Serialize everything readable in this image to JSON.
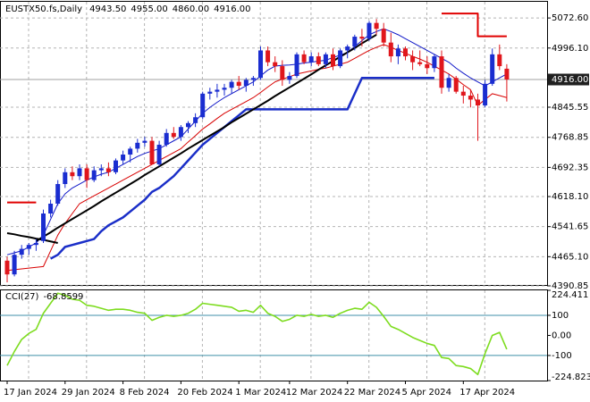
{
  "chart_data": {
    "type": "candlestick",
    "title": "EUSTX50.fs,Daily",
    "header_values": [
      {
        "value": 4943.5,
        "label": "4943.50"
      },
      {
        "value": 4955,
        "label": "4955.00"
      },
      {
        "value": 4860,
        "label": "4860.00"
      },
      {
        "value": 4916,
        "label": "4916.00"
      }
    ],
    "categories": [
      "17 Jan 2024",
      null,
      null,
      null,
      null,
      null,
      null,
      null,
      "29 Jan 2024",
      null,
      null,
      null,
      null,
      null,
      null,
      null,
      "8 Feb 2024",
      null,
      null,
      null,
      null,
      null,
      null,
      null,
      "20 Feb 2024",
      null,
      null,
      null,
      null,
      null,
      null,
      null,
      "1 Mar 2024",
      null,
      null,
      null,
      null,
      null,
      null,
      "12 Mar 2024",
      null,
      null,
      null,
      null,
      null,
      null,
      null,
      "22 Mar 2024",
      null,
      null,
      null,
      null,
      null,
      null,
      null,
      "5 Apr 2024",
      null,
      null,
      null,
      null,
      null,
      null,
      null,
      "17 Apr 2024",
      null,
      null,
      null,
      null,
      null,
      null
    ],
    "open": [
      4455,
      4420,
      4470,
      4485,
      4495,
      4505,
      4575,
      4600,
      4650,
      4680,
      4670,
      4690,
      4660,
      4685,
      4690,
      4680,
      4710,
      4725,
      4740,
      4755,
      4760,
      4700,
      4750,
      4780,
      4770,
      4795,
      4805,
      4820,
      4880,
      4885,
      4890,
      4895,
      4910,
      4900,
      4915,
      4920,
      4990,
      4960,
      4950,
      4915,
      4925,
      4980,
      4960,
      4975,
      4955,
      4980,
      4950,
      4990,
      5000,
      5025,
      5020,
      5060,
      5045,
      5010,
      4975,
      4995,
      4975,
      4960,
      4955,
      4945,
      4975,
      4895,
      4920,
      4885,
      4875,
      4865,
      4850,
      4905,
      4980,
      4943.5
    ],
    "high": [
      4465,
      4480,
      4495,
      4500,
      4510,
      4585,
      4610,
      4660,
      4690,
      4695,
      4700,
      4700,
      4695,
      4700,
      4705,
      4715,
      4735,
      4745,
      4765,
      4770,
      4770,
      4760,
      4790,
      4795,
      4800,
      4810,
      4830,
      4885,
      4895,
      4905,
      4905,
      4915,
      4925,
      4920,
      4925,
      5000,
      5000,
      4975,
      4965,
      4935,
      4985,
      4990,
      4985,
      4985,
      4985,
      4995,
      4995,
      5005,
      5030,
      5045,
      5065,
      5070,
      5060,
      5035,
      5005,
      5000,
      4990,
      4990,
      4975,
      4980,
      4990,
      4930,
      4925,
      4900,
      4890,
      4880,
      4915,
      4995,
      5005,
      4955
    ],
    "low": [
      4400,
      4415,
      4460,
      4470,
      4480,
      4500,
      4565,
      4595,
      4640,
      4660,
      4660,
      4640,
      4655,
      4670,
      4670,
      4675,
      4700,
      4705,
      4730,
      4745,
      4700,
      4695,
      4745,
      4765,
      4760,
      4780,
      4795,
      4815,
      4865,
      4870,
      4875,
      4880,
      4890,
      4885,
      4900,
      4915,
      4950,
      4935,
      4900,
      4905,
      4920,
      4955,
      4950,
      4950,
      4945,
      4940,
      4945,
      4970,
      4990,
      5000,
      5015,
      5030,
      5000,
      4960,
      4955,
      4965,
      4940,
      4950,
      4930,
      4935,
      4880,
      4885,
      4880,
      4855,
      4845,
      4760,
      4845,
      4900,
      4940,
      4860
    ],
    "close": [
      4420,
      4470,
      4485,
      4495,
      4500,
      4575,
      4600,
      4650,
      4680,
      4670,
      4690,
      4660,
      4685,
      4690,
      4680,
      4710,
      4725,
      4740,
      4755,
      4760,
      4700,
      4750,
      4780,
      4770,
      4795,
      4805,
      4820,
      4880,
      4885,
      4890,
      4895,
      4910,
      4900,
      4915,
      4920,
      4990,
      4960,
      4950,
      4915,
      4925,
      4980,
      4960,
      4975,
      4955,
      4980,
      4950,
      4990,
      5000,
      5025,
      5020,
      5060,
      5045,
      5010,
      4975,
      4995,
      4975,
      4960,
      4955,
      4945,
      4975,
      4895,
      4920,
      4885,
      4875,
      4865,
      4850,
      4905,
      4980,
      4950,
      4916
    ],
    "up_color": "#1a2dd0",
    "down_color": "#e0161c",
    "lines": [
      {
        "color": "#1018c8",
        "width": 1,
        "values": [
          4470,
          4475,
          4480,
          4490,
          4500,
          4520,
          4560,
          4600,
          4625,
          4640,
          4650,
          4660,
          4668,
          4675,
          4680,
          4690,
          4700,
          4710,
          4720,
          4728,
          4734,
          4740,
          4750,
          4760,
          4770,
          4790,
          4810,
          4830,
          4845,
          4858,
          4870,
          4880,
          4890,
          4900,
          4910,
          4925,
          4940,
          4950,
          4952,
          4953,
          4955,
          4958,
          4960,
          4963,
          4965,
          4972,
          4978,
          4985,
          5000,
          5015,
          5030,
          5038,
          5045,
          5038,
          5030,
          5020,
          5010,
          5000,
          4990,
          4980,
          4970,
          4960,
          4945,
          4932,
          4920,
          4910,
          4900,
          4910,
          4920,
          4930
        ]
      },
      {
        "color": "#d80000",
        "width": 1,
        "values": [
          4430,
          4432,
          4434,
          4436,
          4438,
          4440,
          4480,
          4520,
          4550,
          4575,
          4600,
          4610,
          4620,
          4630,
          4640,
          4650,
          4660,
          4670,
          4680,
          4690,
          4700,
          4710,
          4720,
          4730,
          4740,
          4757,
          4773,
          4790,
          4803,
          4817,
          4830,
          4840,
          4850,
          4860,
          4870,
          4883,
          4897,
          4910,
          4917,
          4923,
          4930,
          4934,
          4938,
          4942,
          4945,
          4950,
          4955,
          4960,
          4970,
          4980,
          4990,
          4998,
          5005,
          4998,
          4990,
          4983,
          4975,
          4968,
          4960,
          4950,
          4940,
          4930,
          4917,
          4903,
          4890,
          4850,
          4865,
          4880,
          4875,
          4870
        ]
      },
      {
        "color": "#1a2ec8",
        "width": 2.5,
        "values": [
          null,
          null,
          null,
          null,
          null,
          null,
          4460,
          4470,
          4490,
          4495,
          4500,
          4505,
          4510,
          4530,
          4545,
          4555,
          4565,
          4580,
          4595,
          4610,
          4630,
          4640,
          4655,
          4670,
          4690,
          4710,
          4730,
          4750,
          4765,
          4780,
          4795,
          4810,
          4825,
          4840,
          4840,
          4840,
          4840,
          4840,
          4840,
          4840,
          4840,
          4840,
          4840,
          4840,
          4840,
          4840,
          4840,
          4840,
          4880,
          4920,
          4920,
          4920,
          4920,
          4920,
          4920,
          4920,
          4920,
          4920,
          4920,
          4920,
          null,
          null,
          null,
          null,
          null,
          null,
          null,
          null,
          null,
          null
        ]
      },
      {
        "color": "#e00000",
        "width": 2,
        "style": "step",
        "values": [
          4603,
          4603,
          4603,
          4603,
          4603,
          null,
          null,
          null,
          null,
          null,
          null,
          null,
          null,
          null,
          null,
          null,
          null,
          null,
          null,
          null,
          null,
          null,
          null,
          null,
          null,
          null,
          null,
          null,
          null,
          null,
          null,
          null,
          null,
          null,
          null,
          null,
          null,
          null,
          null,
          null,
          null,
          null,
          null,
          null,
          null,
          null,
          null,
          null,
          null,
          null,
          null,
          null,
          null,
          null,
          null,
          null,
          null,
          null,
          null,
          null,
          5084,
          5084,
          5084,
          5084,
          5084,
          5026,
          5026,
          5026,
          5026,
          5026
        ]
      },
      {
        "color": "#000000",
        "width": 2,
        "values": [
          4525,
          4522,
          4518,
          4515,
          4511,
          4508,
          4504,
          4500,
          null,
          null,
          null,
          null,
          null,
          null,
          null,
          null,
          null,
          null,
          null,
          null,
          null,
          null,
          null,
          null,
          null,
          null,
          null,
          null,
          null,
          null,
          null,
          null,
          null,
          null,
          null,
          null,
          null,
          null,
          null,
          null,
          null,
          null,
          null,
          null,
          null,
          null,
          null,
          null,
          null,
          null,
          null,
          null,
          null,
          null,
          null,
          null,
          null,
          null,
          null,
          null,
          null,
          null,
          null,
          null,
          null,
          null,
          null,
          null,
          null,
          null
        ]
      },
      {
        "color": "#000000",
        "width": 2,
        "values": [
          null,
          null,
          null,
          null,
          4505,
          4516,
          4527,
          4539,
          4550,
          4561,
          4572,
          4583,
          4594,
          4606,
          4617,
          4628,
          4639,
          4650,
          4661,
          4673,
          4684,
          4695,
          4706,
          4717,
          4728,
          4740,
          4751,
          4762,
          4773,
          4784,
          4795,
          4807,
          4818,
          4829,
          4840,
          4851,
          4862,
          4874,
          4885,
          4896,
          4907,
          4918,
          4929,
          4941,
          4952,
          4963,
          4974,
          4985,
          4996,
          5008,
          5019,
          5030,
          null,
          null,
          null,
          null,
          null,
          null,
          null,
          null,
          null,
          null,
          null,
          null,
          null,
          null,
          null,
          null,
          null,
          null
        ]
      }
    ],
    "ylim": [
      4390.85,
      5113.8
    ],
    "yticks": [
      {
        "value": 5072.6,
        "label": "5072.60"
      },
      {
        "value": 4996.1,
        "label": "4996.10"
      },
      {
        "value": 4845.55,
        "label": "4845.55"
      },
      {
        "value": 4768.85,
        "label": "4768.85"
      },
      {
        "value": 4692.35,
        "label": "4692.35"
      },
      {
        "value": 4618.1,
        "label": "4618.10"
      },
      {
        "value": 4541.65,
        "label": "4541.65"
      },
      {
        "value": 4465.1,
        "label": "4465.10"
      },
      {
        "value": 4390.85,
        "label": "4390.85"
      }
    ],
    "last_price": {
      "value": 4916,
      "label": "4916.00"
    },
    "grid": true,
    "indicator": {
      "type": "line",
      "title": "CCI(27)",
      "current": -68.8599,
      "color": "#7ddc1f",
      "values": [
        -150,
        -80,
        -20,
        10,
        30,
        110,
        160,
        210,
        200,
        180,
        175,
        150,
        145,
        135,
        125,
        130,
        130,
        125,
        115,
        110,
        75,
        90,
        100,
        95,
        100,
        110,
        130,
        160,
        155,
        150,
        145,
        140,
        120,
        125,
        115,
        150,
        110,
        95,
        70,
        80,
        100,
        95,
        105,
        95,
        100,
        90,
        110,
        125,
        135,
        130,
        165,
        140,
        95,
        45,
        30,
        10,
        -10,
        -25,
        -40,
        -50,
        -110,
        -115,
        -150,
        -155,
        -165,
        -195,
        -90,
        0,
        15,
        -68.8599
      ],
      "ylim": [
        -224.8233,
        224.411
      ],
      "yticks": [
        224.411,
        100,
        {
          "value": 0,
          "label": "0.00"
        },
        -100,
        -224.8233
      ],
      "levels": [
        100,
        -100
      ],
      "level_color": "#3f8fa8"
    }
  }
}
